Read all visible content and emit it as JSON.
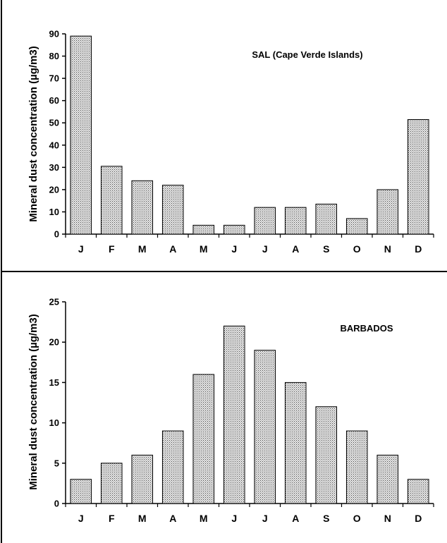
{
  "chart_data": [
    {
      "type": "bar",
      "title": "SAL (Cape Verde Islands)",
      "ylabel": "Mineral dust concentration (µg/m3)",
      "xlabel": "",
      "categories": [
        "J",
        "F",
        "M",
        "A",
        "M",
        "J",
        "J",
        "A",
        "S",
        "O",
        "N",
        "D"
      ],
      "values": [
        89,
        30.5,
        24,
        22,
        4,
        4,
        12,
        12,
        13.5,
        7,
        20,
        51.5
      ],
      "ylim": [
        0,
        90
      ],
      "yticks": [
        "0",
        "10",
        "20",
        "30",
        "40",
        "50",
        "60",
        "70",
        "80",
        "90"
      ],
      "grid": false,
      "legend": "none"
    },
    {
      "type": "bar",
      "title": "BARBADOS",
      "ylabel": "Mineral dust concentration (µg/m3)",
      "xlabel": "",
      "categories": [
        "J",
        "F",
        "M",
        "A",
        "M",
        "J",
        "J",
        "A",
        "S",
        "O",
        "N",
        "D"
      ],
      "values": [
        3,
        5,
        6,
        9,
        16,
        22,
        19,
        15,
        12,
        9,
        6,
        3
      ],
      "ylim": [
        0,
        25
      ],
      "yticks": [
        "0",
        "5",
        "10",
        "15",
        "20",
        "25"
      ],
      "grid": false,
      "legend": "none"
    }
  ],
  "colors": {
    "bar_fill": "#d0d0d0",
    "stipple_dot": "#555555",
    "frame": "#000000"
  }
}
